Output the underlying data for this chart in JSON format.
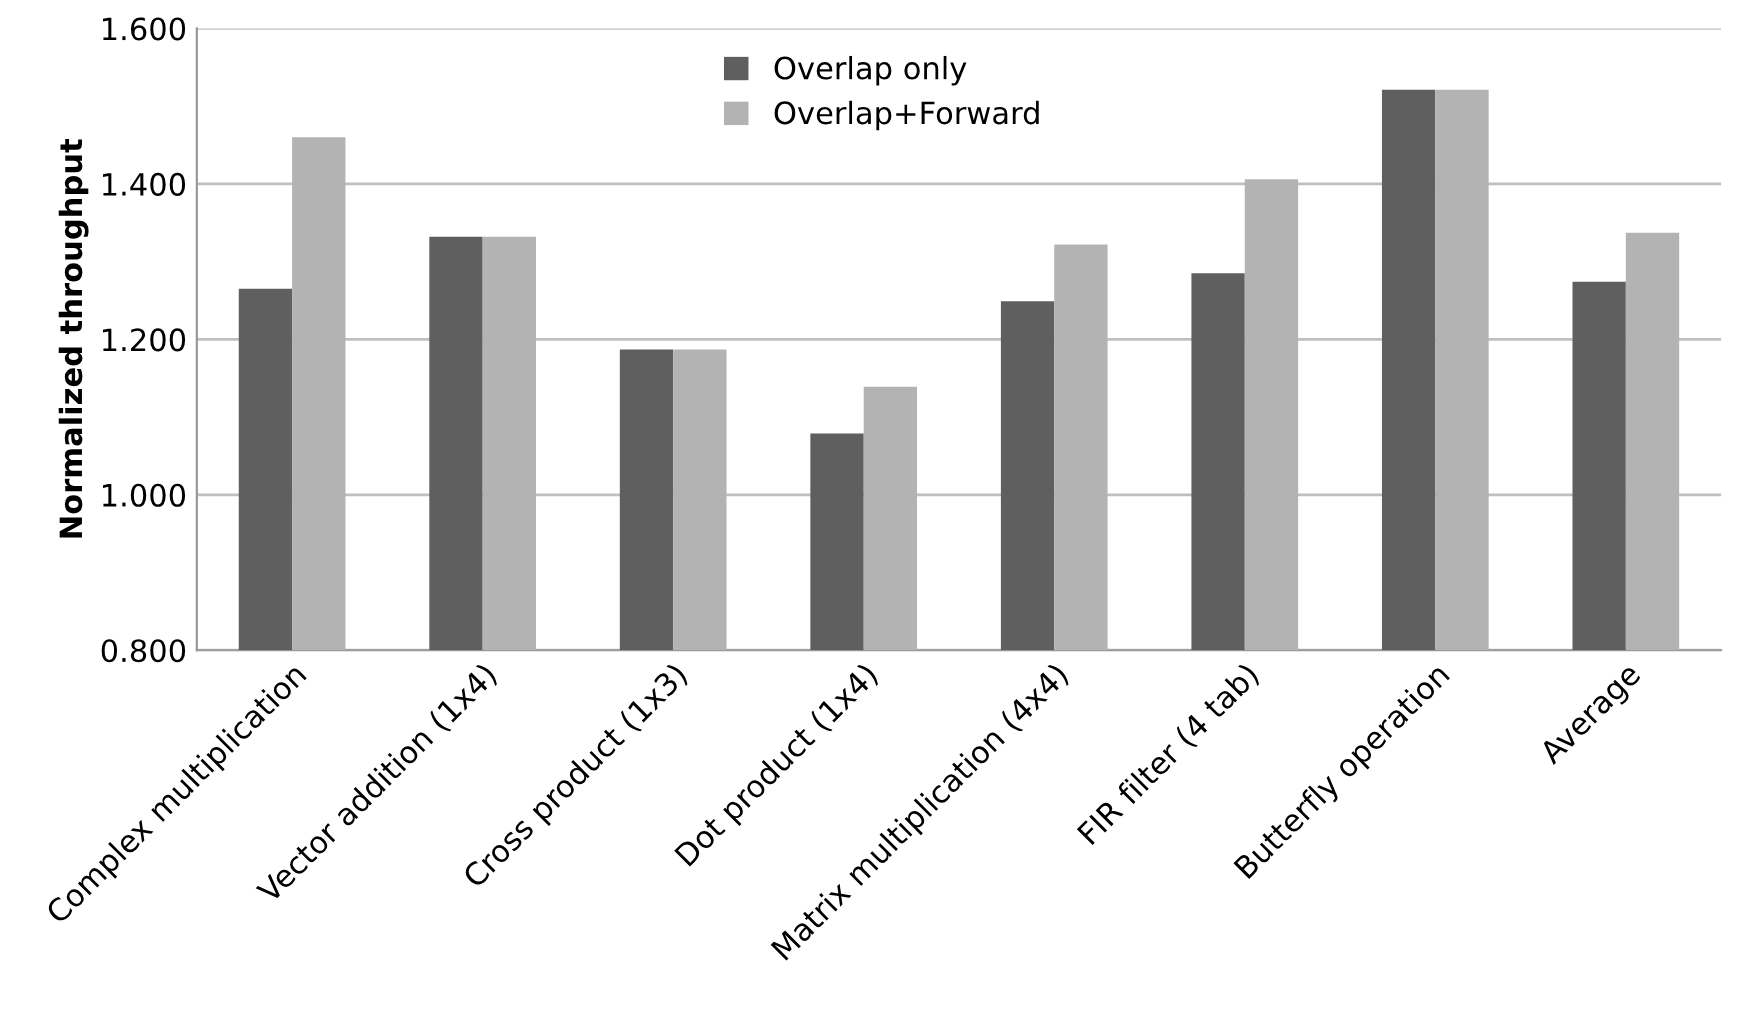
{
  "chart_data": {
    "type": "bar",
    "ylabel": "Normalized throughput",
    "categories": [
      "Complex multiplication",
      "Vector addition (1x4)",
      "Cross product (1x3)",
      "Dot product (1x4)",
      "Matrix multiplication (4x4)",
      "FIR filter (4 tab)",
      "Butterfly operation",
      "Average"
    ],
    "series": [
      {
        "name": "Overlap only",
        "color": "#5f5f5f",
        "values": [
          1.265,
          1.332,
          1.187,
          1.079,
          1.249,
          1.285,
          1.521,
          1.274
        ]
      },
      {
        "name": "Overlap+Forward",
        "color": "#b3b3b3",
        "values": [
          1.46,
          1.332,
          1.187,
          1.139,
          1.322,
          1.406,
          1.521,
          1.337
        ]
      }
    ],
    "ylim": [
      0.8,
      1.6
    ],
    "yticks": [
      {
        "value": 0.8,
        "label": "0.800"
      },
      {
        "value": 1.0,
        "label": "1.000"
      },
      {
        "value": 1.2,
        "label": "1.200"
      },
      {
        "value": 1.4,
        "label": "1.400"
      },
      {
        "value": 1.6,
        "label": "1.600"
      }
    ],
    "grid": "y",
    "legend": "top"
  }
}
